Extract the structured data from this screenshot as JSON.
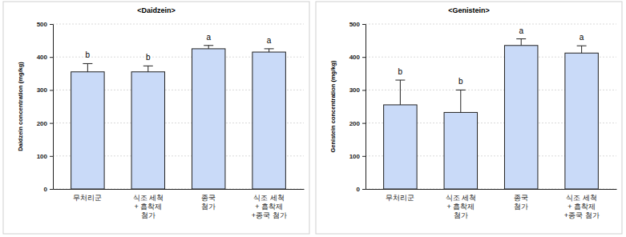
{
  "chart_data": [
    {
      "type": "bar",
      "title": "<Daidzein>",
      "y_label": "Daidzein concentration (mg/kg)",
      "categories": [
        "무처리군",
        "식조 세척\n+ 흡착제\n첨가",
        "종국\n첨가",
        "식조 세척\n+ 흡착제\n+종국 첨가"
      ],
      "values": [
        355,
        355,
        425,
        415
      ],
      "errors": [
        25,
        18,
        10,
        10
      ],
      "annotations": [
        "b",
        "b",
        "a",
        "a"
      ],
      "color": "#c9daf8",
      "ylim": [
        0,
        500
      ],
      "yticks": [
        0,
        100,
        200,
        300,
        400,
        500
      ],
      "grid": true
    },
    {
      "type": "bar",
      "title": "<Genistein>",
      "y_label": "Genistein concentration (mg/kg)",
      "categories": [
        "무처리군",
        "식조 세척\n+ 흡착제\n첨가",
        "종국\n첨가",
        "식조 세척\n+ 흡착제\n+종국 첨가"
      ],
      "values": [
        255,
        232,
        435,
        412
      ],
      "errors": [
        75,
        68,
        20,
        22
      ],
      "annotations": [
        "b",
        "b",
        "a",
        "a"
      ],
      "color": "#c9daf8",
      "ylim": [
        0,
        500
      ],
      "yticks": [
        0,
        100,
        200,
        300,
        400,
        500
      ],
      "grid": true
    }
  ]
}
